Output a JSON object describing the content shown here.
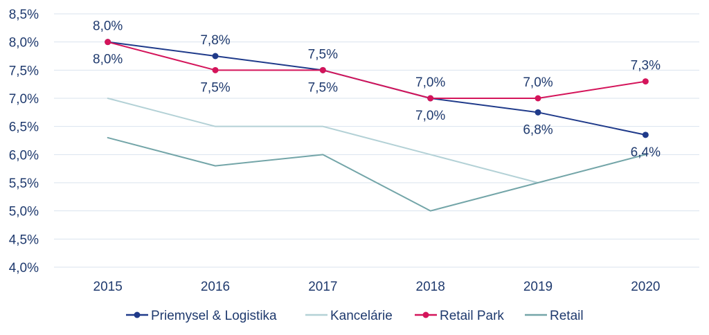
{
  "chart_data": {
    "type": "line",
    "categories": [
      "2015",
      "2016",
      "2017",
      "2018",
      "2019",
      "2020"
    ],
    "ylim": [
      4.0,
      8.5
    ],
    "ytick_values": [
      4.0,
      4.5,
      5.0,
      5.5,
      6.0,
      6.5,
      7.0,
      7.5,
      8.0,
      8.5
    ],
    "ytick_labels": [
      "4,0%",
      "4,5%",
      "5,0%",
      "5,5%",
      "6,0%",
      "6,5%",
      "7,0%",
      "7,5%",
      "8,0%",
      "8,5%"
    ],
    "grid": true,
    "legend_position": "bottom",
    "series": [
      {
        "name": "Priemysel & Logistika",
        "color": "#1f3a8a",
        "markers": true,
        "values": [
          8.0,
          7.75,
          7.5,
          7.0,
          6.75,
          6.35
        ],
        "labels": [
          "8,0%",
          "7,8%",
          "7,5%",
          "7,0%",
          "6,8%",
          "6,4%"
        ],
        "label_side": [
          "above",
          "above",
          "above",
          "below",
          "below",
          "below"
        ]
      },
      {
        "name": "Kancelárie",
        "color": "#b3d1d6",
        "markers": false,
        "values": [
          7.0,
          6.5,
          6.5,
          6.0,
          5.5,
          null
        ],
        "labels": [],
        "label_side": []
      },
      {
        "name": "Retail Park",
        "color": "#d4145a",
        "markers": true,
        "values": [
          8.0,
          7.5,
          7.5,
          7.0,
          7.0,
          7.3
        ],
        "labels": [
          "8,0%",
          "7,5%",
          "7,5%",
          "7,0%",
          "7,0%",
          "7,3%"
        ],
        "label_side": [
          "below",
          "below",
          "below",
          "above",
          "above",
          "above"
        ]
      },
      {
        "name": "Retail",
        "color": "#73a5a8",
        "markers": false,
        "values": [
          6.3,
          5.8,
          6.0,
          5.0,
          5.5,
          6.0
        ],
        "labels": [],
        "label_side": []
      }
    ]
  }
}
